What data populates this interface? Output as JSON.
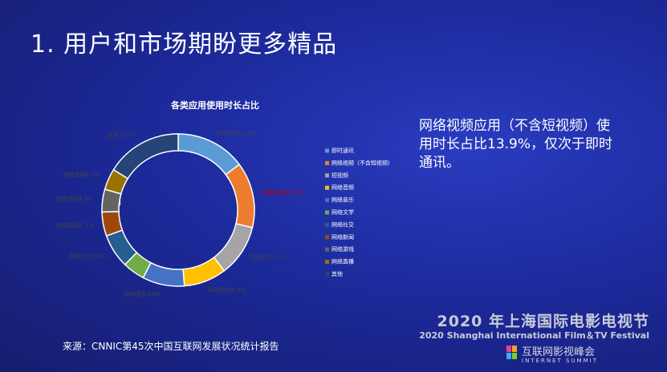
{
  "slide": {
    "title": "1. 用户和市场期盼更多精品",
    "note": "网络视频应用（不含短视频）使用时长占比13.9%，仅次于即时通讯。",
    "source": "来源：CNNIC第45次中国互联网发展状况统计报告",
    "festival_cn": "2020 年上海国际电影电视节",
    "festival_en": "2020 Shanghai International Film＆TV Festival",
    "summit_cn": "互联网影视峰会",
    "summit_en": "INTERNET SUMMIT"
  },
  "chart_data": {
    "type": "donut",
    "title": "各类应用使用时长占比",
    "categories": [
      "即时通讯",
      "网络视频（不含短视频）",
      "短视频",
      "网络音频",
      "网络音乐",
      "网络文学",
      "网络社交",
      "网络新闻",
      "网络游戏",
      "网络直播",
      "其他"
    ],
    "label_names": [
      "即时通讯",
      "网络视频",
      "短视频",
      "网络音频",
      "网络音乐",
      null,
      "网络社交",
      "网络新闻",
      "网络游戏",
      "网络直播",
      "其他"
    ],
    "values": [
      14.8,
      13.9,
      11.0,
      9.0,
      8.9,
      4.7,
      7.2,
      5.1,
      4.8,
      4.5,
      16.1
    ],
    "value_labels": [
      "14.8%",
      "13.9%",
      "11.0%",
      "9.0%",
      "8.9%",
      "4.7%",
      "7.2%",
      "5.1%",
      "4.8%",
      "4.5%",
      "16.1%"
    ],
    "colors": [
      "#5b9bd5",
      "#ed7d31",
      "#a5a5a5",
      "#ffc000",
      "#4472c4",
      "#70ad47",
      "#255e91",
      "#9e480e",
      "#636363",
      "#997300",
      "#264478"
    ],
    "legend": "right"
  }
}
